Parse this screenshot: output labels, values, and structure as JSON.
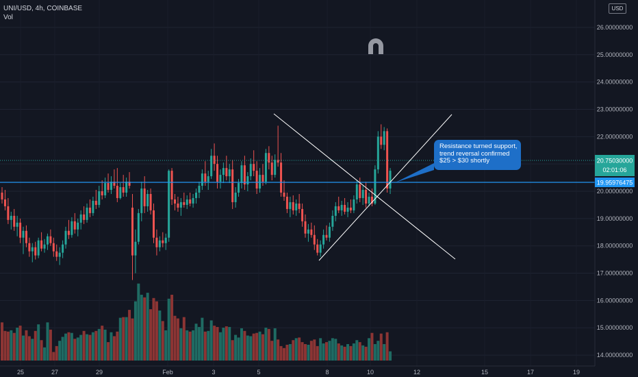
{
  "header": {
    "symbol_line": "UNI/USD, 4h, COINBASE",
    "volume_label": "Vol"
  },
  "currency_button": "USD",
  "y_axis": {
    "labels": [
      "26.00000000",
      "25.00000000",
      "24.00000000",
      "23.00000000",
      "22.00000000",
      "21.00000000",
      "20.00000000",
      "19.00000000",
      "18.00000000",
      "17.00000000",
      "16.00000000",
      "15.00000000",
      "14.00000000"
    ]
  },
  "x_axis": {
    "labels": [
      "25",
      "27",
      "29",
      "Feb",
      "3",
      "5",
      "8",
      "10",
      "12",
      "15",
      "17",
      "19"
    ]
  },
  "price_tags": {
    "current_price": "20.75030000",
    "countdown": "02:01:06",
    "line_price": "19.95976475"
  },
  "annotation": {
    "lines": [
      "Resistance turned support,",
      "trend reversal confirmed",
      "$25 > $30 shortly"
    ]
  },
  "colors": {
    "up": "#26a69a",
    "down": "#ef5350",
    "up_volume": "#1f6b63",
    "down_volume": "#8c3534",
    "hline": "#2196f3",
    "background": "#131722"
  },
  "icons": {
    "magnet": "magnet-icon"
  },
  "chart_data": {
    "type": "candlestick",
    "timeframe": "4h",
    "ylim": [
      13.6,
      26.3
    ],
    "grid": true,
    "horizontal_line": 19.96,
    "candles": [
      {
        "o": 19.95,
        "h": 20.15,
        "l": 19.55,
        "c": 19.7,
        "v": 5.8
      },
      {
        "o": 19.7,
        "h": 20.05,
        "l": 19.3,
        "c": 19.45,
        "v": 4.5
      },
      {
        "o": 19.45,
        "h": 19.75,
        "l": 18.8,
        "c": 18.95,
        "v": 4.4
      },
      {
        "o": 18.95,
        "h": 19.25,
        "l": 18.6,
        "c": 19.1,
        "v": 4.6
      },
      {
        "o": 19.1,
        "h": 19.35,
        "l": 18.55,
        "c": 18.7,
        "v": 4.2
      },
      {
        "o": 18.7,
        "h": 19.1,
        "l": 18.35,
        "c": 18.85,
        "v": 5.0
      },
      {
        "o": 18.85,
        "h": 19.0,
        "l": 18.1,
        "c": 18.3,
        "v": 5.3
      },
      {
        "o": 18.3,
        "h": 18.7,
        "l": 17.7,
        "c": 18.55,
        "v": 3.8
      },
      {
        "o": 18.55,
        "h": 18.75,
        "l": 17.95,
        "c": 18.1,
        "v": 4.6
      },
      {
        "o": 18.1,
        "h": 18.3,
        "l": 17.6,
        "c": 17.8,
        "v": 3.7
      },
      {
        "o": 17.8,
        "h": 18.1,
        "l": 17.4,
        "c": 17.95,
        "v": 3.3
      },
      {
        "o": 17.95,
        "h": 18.15,
        "l": 17.5,
        "c": 17.65,
        "v": 4.5
      },
      {
        "o": 17.65,
        "h": 18.3,
        "l": 17.55,
        "c": 18.2,
        "v": 5.5
      },
      {
        "o": 18.2,
        "h": 18.5,
        "l": 17.8,
        "c": 17.9,
        "v": 3.1
      },
      {
        "o": 17.9,
        "h": 18.25,
        "l": 17.75,
        "c": 18.05,
        "v": 2.0
      },
      {
        "o": 18.05,
        "h": 18.45,
        "l": 17.85,
        "c": 18.35,
        "v": 5.8
      },
      {
        "o": 18.35,
        "h": 18.6,
        "l": 18.0,
        "c": 18.1,
        "v": 4.7
      },
      {
        "o": 18.1,
        "h": 18.3,
        "l": 17.6,
        "c": 17.8,
        "v": 1.3
      },
      {
        "o": 17.8,
        "h": 18.05,
        "l": 17.45,
        "c": 17.6,
        "v": 2.2
      },
      {
        "o": 17.6,
        "h": 17.95,
        "l": 17.3,
        "c": 17.75,
        "v": 3.0
      },
      {
        "o": 17.75,
        "h": 18.2,
        "l": 17.55,
        "c": 18.05,
        "v": 3.6
      },
      {
        "o": 18.05,
        "h": 18.7,
        "l": 17.9,
        "c": 18.55,
        "v": 4.1
      },
      {
        "o": 18.55,
        "h": 18.95,
        "l": 18.25,
        "c": 18.4,
        "v": 4.3
      },
      {
        "o": 18.4,
        "h": 19.05,
        "l": 18.3,
        "c": 18.9,
        "v": 4.2
      },
      {
        "o": 18.9,
        "h": 19.2,
        "l": 18.45,
        "c": 18.6,
        "v": 3.3
      },
      {
        "o": 18.6,
        "h": 19.0,
        "l": 18.35,
        "c": 18.85,
        "v": 3.5
      },
      {
        "o": 18.85,
        "h": 19.3,
        "l": 18.6,
        "c": 19.15,
        "v": 3.9
      },
      {
        "o": 19.15,
        "h": 19.45,
        "l": 18.8,
        "c": 18.95,
        "v": 4.5
      },
      {
        "o": 18.95,
        "h": 19.55,
        "l": 18.85,
        "c": 19.4,
        "v": 4.0
      },
      {
        "o": 19.4,
        "h": 19.7,
        "l": 19.05,
        "c": 19.2,
        "v": 3.9
      },
      {
        "o": 19.2,
        "h": 19.8,
        "l": 19.1,
        "c": 19.65,
        "v": 4.3
      },
      {
        "o": 19.65,
        "h": 20.05,
        "l": 19.35,
        "c": 19.5,
        "v": 4.5
      },
      {
        "o": 19.5,
        "h": 20.2,
        "l": 19.4,
        "c": 20.0,
        "v": 4.8
      },
      {
        "o": 20.0,
        "h": 20.4,
        "l": 19.7,
        "c": 19.85,
        "v": 5.3
      },
      {
        "o": 19.85,
        "h": 20.5,
        "l": 19.75,
        "c": 20.3,
        "v": 4.7
      },
      {
        "o": 20.3,
        "h": 20.65,
        "l": 19.95,
        "c": 20.05,
        "v": 2.8
      },
      {
        "o": 20.05,
        "h": 20.55,
        "l": 19.9,
        "c": 20.35,
        "v": 4.3
      },
      {
        "o": 20.35,
        "h": 20.8,
        "l": 20.1,
        "c": 20.2,
        "v": 3.7
      },
      {
        "o": 20.2,
        "h": 20.85,
        "l": 19.6,
        "c": 19.75,
        "v": 4.4
      },
      {
        "o": 19.75,
        "h": 20.3,
        "l": 19.7,
        "c": 20.15,
        "v": 6.5
      },
      {
        "o": 20.15,
        "h": 20.6,
        "l": 19.8,
        "c": 19.95,
        "v": 6.6
      },
      {
        "o": 19.95,
        "h": 20.5,
        "l": 19.8,
        "c": 20.35,
        "v": 6.6
      },
      {
        "o": 20.35,
        "h": 20.7,
        "l": 20.1,
        "c": 20.2,
        "v": 7.7
      },
      {
        "o": 19.4,
        "h": 19.9,
        "l": 16.75,
        "c": 17.65,
        "v": 6.4
      },
      {
        "o": 17.65,
        "h": 18.6,
        "l": 17.0,
        "c": 18.15,
        "v": 9.0
      },
      {
        "o": 18.15,
        "h": 19.35,
        "l": 18.05,
        "c": 19.2,
        "v": 11.7
      },
      {
        "o": 19.2,
        "h": 20.35,
        "l": 18.9,
        "c": 20.1,
        "v": 10.0
      },
      {
        "o": 20.1,
        "h": 20.55,
        "l": 19.2,
        "c": 19.45,
        "v": 9.6
      },
      {
        "o": 19.45,
        "h": 20.05,
        "l": 19.25,
        "c": 19.9,
        "v": 10.3
      },
      {
        "o": 19.9,
        "h": 20.1,
        "l": 19.15,
        "c": 19.3,
        "v": 7.8
      },
      {
        "o": 19.3,
        "h": 19.55,
        "l": 18.1,
        "c": 18.3,
        "v": 9.5
      },
      {
        "o": 18.3,
        "h": 18.6,
        "l": 17.65,
        "c": 17.95,
        "v": 9.0
      },
      {
        "o": 17.95,
        "h": 18.35,
        "l": 17.8,
        "c": 18.2,
        "v": 7.6
      },
      {
        "o": 18.2,
        "h": 18.5,
        "l": 17.95,
        "c": 18.1,
        "v": 6.0
      },
      {
        "o": 18.1,
        "h": 18.45,
        "l": 17.85,
        "c": 18.3,
        "v": 4.6
      },
      {
        "o": 18.3,
        "h": 20.8,
        "l": 18.15,
        "c": 20.75,
        "v": 9.4
      },
      {
        "o": 20.75,
        "h": 20.85,
        "l": 19.5,
        "c": 19.7,
        "v": 10.0
      },
      {
        "o": 19.7,
        "h": 19.9,
        "l": 19.3,
        "c": 19.55,
        "v": 6.8
      },
      {
        "o": 19.55,
        "h": 19.8,
        "l": 19.25,
        "c": 19.4,
        "v": 6.4
      },
      {
        "o": 19.4,
        "h": 19.75,
        "l": 19.1,
        "c": 19.6,
        "v": 4.9
      },
      {
        "o": 19.6,
        "h": 19.95,
        "l": 19.4,
        "c": 19.5,
        "v": 6.6
      },
      {
        "o": 19.5,
        "h": 19.85,
        "l": 19.35,
        "c": 19.7,
        "v": 4.6
      },
      {
        "o": 19.7,
        "h": 19.95,
        "l": 19.45,
        "c": 19.55,
        "v": 4.4
      },
      {
        "o": 19.55,
        "h": 19.9,
        "l": 19.4,
        "c": 19.75,
        "v": 4.6
      },
      {
        "o": 19.75,
        "h": 20.1,
        "l": 19.55,
        "c": 19.95,
        "v": 5.6
      },
      {
        "o": 19.95,
        "h": 20.35,
        "l": 19.75,
        "c": 20.2,
        "v": 5.1
      },
      {
        "o": 20.2,
        "h": 20.8,
        "l": 20.05,
        "c": 20.65,
        "v": 6.5
      },
      {
        "o": 20.65,
        "h": 21.1,
        "l": 20.2,
        "c": 20.35,
        "v": 4.4
      },
      {
        "o": 20.35,
        "h": 20.75,
        "l": 20.05,
        "c": 20.55,
        "v": 4.5
      },
      {
        "o": 20.55,
        "h": 21.55,
        "l": 20.45,
        "c": 21.3,
        "v": 6.1
      },
      {
        "o": 21.3,
        "h": 21.75,
        "l": 20.75,
        "c": 21.0,
        "v": 5.3
      },
      {
        "o": 21.0,
        "h": 21.3,
        "l": 20.1,
        "c": 20.35,
        "v": 5.1
      },
      {
        "o": 20.35,
        "h": 20.8,
        "l": 20.1,
        "c": 20.6,
        "v": 4.3
      },
      {
        "o": 20.6,
        "h": 21.05,
        "l": 20.3,
        "c": 20.85,
        "v": 5.0
      },
      {
        "o": 20.85,
        "h": 21.3,
        "l": 20.4,
        "c": 20.55,
        "v": 5.2
      },
      {
        "o": 20.55,
        "h": 21.0,
        "l": 20.3,
        "c": 20.8,
        "v": 5.1
      },
      {
        "o": 20.8,
        "h": 21.15,
        "l": 19.35,
        "c": 19.6,
        "v": 3.1
      },
      {
        "o": 19.6,
        "h": 20.15,
        "l": 19.4,
        "c": 19.95,
        "v": 3.9
      },
      {
        "o": 19.95,
        "h": 20.45,
        "l": 19.8,
        "c": 20.3,
        "v": 3.5
      },
      {
        "o": 20.3,
        "h": 21.1,
        "l": 20.1,
        "c": 20.95,
        "v": 4.9
      },
      {
        "o": 20.95,
        "h": 21.3,
        "l": 20.05,
        "c": 20.25,
        "v": 4.5
      },
      {
        "o": 20.25,
        "h": 20.7,
        "l": 20.0,
        "c": 20.55,
        "v": 3.8
      },
      {
        "o": 20.55,
        "h": 21.2,
        "l": 20.4,
        "c": 21.0,
        "v": 3.7
      },
      {
        "o": 21.0,
        "h": 21.5,
        "l": 20.55,
        "c": 20.75,
        "v": 4.1
      },
      {
        "o": 20.75,
        "h": 21.1,
        "l": 19.9,
        "c": 20.1,
        "v": 4.2
      },
      {
        "o": 20.1,
        "h": 20.85,
        "l": 19.95,
        "c": 20.6,
        "v": 4.4
      },
      {
        "o": 20.6,
        "h": 21.0,
        "l": 20.2,
        "c": 20.35,
        "v": 4.0
      },
      {
        "o": 20.35,
        "h": 21.55,
        "l": 20.25,
        "c": 21.4,
        "v": 5.0
      },
      {
        "o": 21.4,
        "h": 21.65,
        "l": 20.8,
        "c": 21.05,
        "v": 4.8
      },
      {
        "o": 21.05,
        "h": 21.3,
        "l": 20.4,
        "c": 20.6,
        "v": 3.0
      },
      {
        "o": 20.6,
        "h": 21.35,
        "l": 20.5,
        "c": 21.15,
        "v": 4.9
      },
      {
        "o": 21.15,
        "h": 22.4,
        "l": 20.9,
        "c": 21.05,
        "v": 3.2
      },
      {
        "o": 21.05,
        "h": 21.4,
        "l": 19.8,
        "c": 19.95,
        "v": 2.2
      },
      {
        "o": 19.95,
        "h": 20.4,
        "l": 19.65,
        "c": 19.8,
        "v": 1.9
      },
      {
        "o": 19.8,
        "h": 19.95,
        "l": 19.2,
        "c": 19.35,
        "v": 2.4
      },
      {
        "o": 19.35,
        "h": 19.8,
        "l": 19.05,
        "c": 19.6,
        "v": 2.5
      },
      {
        "o": 19.6,
        "h": 19.85,
        "l": 19.15,
        "c": 19.3,
        "v": 3.1
      },
      {
        "o": 19.3,
        "h": 19.7,
        "l": 19.1,
        "c": 19.55,
        "v": 3.4
      },
      {
        "o": 19.55,
        "h": 19.9,
        "l": 19.2,
        "c": 19.35,
        "v": 3.5
      },
      {
        "o": 19.35,
        "h": 19.55,
        "l": 18.7,
        "c": 18.9,
        "v": 2.8
      },
      {
        "o": 18.9,
        "h": 19.15,
        "l": 18.3,
        "c": 18.45,
        "v": 2.5
      },
      {
        "o": 18.45,
        "h": 18.8,
        "l": 18.15,
        "c": 18.6,
        "v": 2.4
      },
      {
        "o": 18.6,
        "h": 18.85,
        "l": 18.3,
        "c": 18.4,
        "v": 3.0
      },
      {
        "o": 18.4,
        "h": 18.75,
        "l": 17.85,
        "c": 18.05,
        "v": 3.2
      },
      {
        "o": 18.05,
        "h": 18.25,
        "l": 17.65,
        "c": 17.75,
        "v": 2.2
      },
      {
        "o": 17.75,
        "h": 18.2,
        "l": 17.6,
        "c": 18.05,
        "v": 3.4
      },
      {
        "o": 18.05,
        "h": 18.6,
        "l": 17.9,
        "c": 18.4,
        "v": 2.6
      },
      {
        "o": 18.4,
        "h": 18.75,
        "l": 18.2,
        "c": 18.3,
        "v": 2.8
      },
      {
        "o": 18.3,
        "h": 18.85,
        "l": 18.15,
        "c": 18.7,
        "v": 3.0
      },
      {
        "o": 18.7,
        "h": 19.3,
        "l": 18.55,
        "c": 19.1,
        "v": 3.4
      },
      {
        "o": 19.1,
        "h": 19.6,
        "l": 18.9,
        "c": 19.45,
        "v": 3.3
      },
      {
        "o": 19.45,
        "h": 19.8,
        "l": 19.2,
        "c": 19.3,
        "v": 2.6
      },
      {
        "o": 19.3,
        "h": 19.65,
        "l": 19.1,
        "c": 19.5,
        "v": 2.3
      },
      {
        "o": 19.5,
        "h": 19.75,
        "l": 19.15,
        "c": 19.25,
        "v": 2.1
      },
      {
        "o": 19.25,
        "h": 19.6,
        "l": 19.05,
        "c": 19.4,
        "v": 2.5
      },
      {
        "o": 19.4,
        "h": 19.7,
        "l": 19.2,
        "c": 19.3,
        "v": 2.2
      },
      {
        "o": 19.3,
        "h": 19.85,
        "l": 19.2,
        "c": 19.7,
        "v": 2.6
      },
      {
        "o": 19.7,
        "h": 20.4,
        "l": 19.55,
        "c": 20.25,
        "v": 3.1
      },
      {
        "o": 20.25,
        "h": 20.5,
        "l": 19.6,
        "c": 19.75,
        "v": 2.8
      },
      {
        "o": 19.75,
        "h": 20.2,
        "l": 19.5,
        "c": 20.05,
        "v": 2.3
      },
      {
        "o": 20.05,
        "h": 20.35,
        "l": 19.4,
        "c": 19.55,
        "v": 2.1
      },
      {
        "o": 19.55,
        "h": 19.95,
        "l": 19.45,
        "c": 19.8,
        "v": 3.4
      },
      {
        "o": 19.8,
        "h": 20.1,
        "l": 19.45,
        "c": 19.55,
        "v": 4.2
      },
      {
        "o": 19.55,
        "h": 20.95,
        "l": 19.5,
        "c": 20.8,
        "v": 2.5
      },
      {
        "o": 20.8,
        "h": 22.2,
        "l": 20.65,
        "c": 22.0,
        "v": 3.0
      },
      {
        "o": 22.0,
        "h": 22.45,
        "l": 21.55,
        "c": 21.7,
        "v": 4.1
      },
      {
        "o": 21.7,
        "h": 22.35,
        "l": 21.5,
        "c": 22.2,
        "v": 2.5
      },
      {
        "o": 22.2,
        "h": 22.3,
        "l": 19.95,
        "c": 20.1,
        "v": 4.3
      },
      {
        "o": 20.1,
        "h": 20.85,
        "l": 19.9,
        "c": 20.75,
        "v": 1.4
      }
    ]
  }
}
